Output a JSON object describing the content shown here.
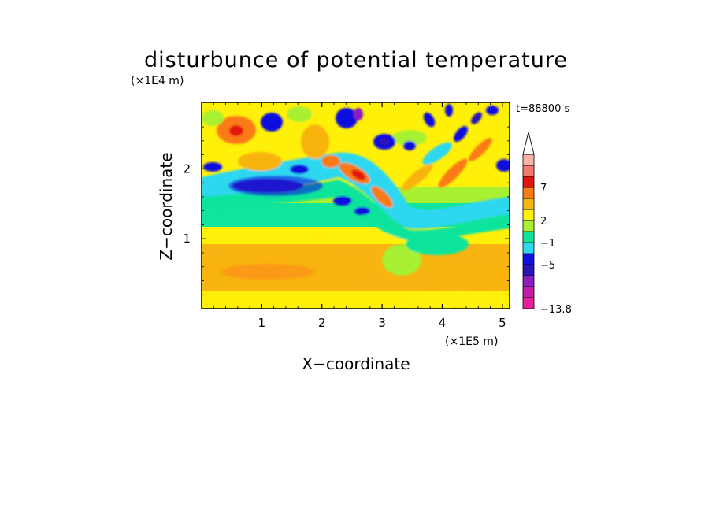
{
  "chart_data": {
    "type": "heatmap",
    "title": "disturbunce of potential temperature",
    "xlabel": "X−coordinate",
    "ylabel": "Z−coordinate",
    "x_unit": "(×1E5 m)",
    "y_unit": "(×1E4 m)",
    "time_label": "t=88800 s",
    "x_ticks": [
      "1",
      "2",
      "3",
      "4",
      "5"
    ],
    "y_ticks": [
      "1",
      "2"
    ],
    "xlim": [
      0,
      5.12
    ],
    "ylim": [
      0,
      2.95
    ],
    "colorbar": {
      "labels": [
        "7",
        "2",
        "−1",
        "−5",
        "−13.8"
      ],
      "min": -13.8,
      "extend": "max",
      "colors": [
        "#e6209c",
        "#c21da6",
        "#8c1ec0",
        "#2a14b8",
        "#1010e0",
        "#2fd7f0",
        "#11e49b",
        "#a8f032",
        "#fff00a",
        "#f8b410",
        "#fb7b16",
        "#e3140d",
        "#f27a6e",
        "#f7b3a6"
      ]
    }
  }
}
